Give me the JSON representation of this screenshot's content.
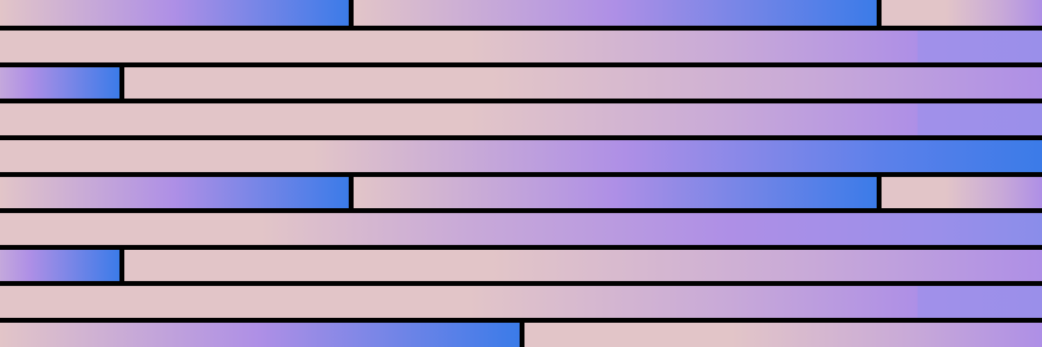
{
  "palette": {
    "background": "#000000",
    "pink": "#e2c5c8",
    "mauve": "#c8a9d8",
    "purple": "#ae8fe6",
    "lavender": "#9a8fea",
    "blue": "#3b7be8"
  }
}
